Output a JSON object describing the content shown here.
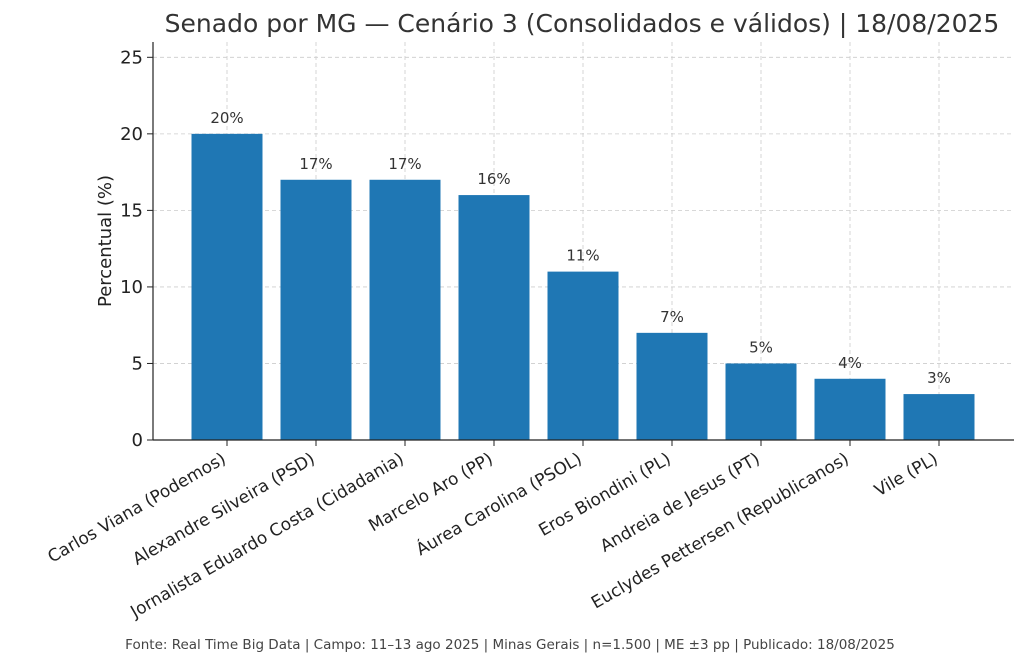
{
  "chart_data": {
    "type": "bar",
    "title": "Senado por MG — Cenário 3 (Consolidados e válidos) | 18/08/2025",
    "xlabel": "",
    "ylabel": "Percentual (%)",
    "categories": [
      "Carlos Viana (Podemos)",
      "Alexandre Silveira (PSD)",
      "Jornalista Eduardo Costa (Cidadania)",
      "Marcelo Aro (PP)",
      "Áurea Carolina (PSOL)",
      "Eros Biondini (PL)",
      "Andreia de Jesus (PT)",
      "Euclydes Pettersen (Republicanos)",
      "Vile (PL)"
    ],
    "values": [
      20,
      17,
      17,
      16,
      11,
      7,
      5,
      4,
      3
    ],
    "data_labels": [
      "20%",
      "17%",
      "17%",
      "16%",
      "11%",
      "7%",
      "5%",
      "4%",
      "3%"
    ],
    "yticks": [
      0,
      5,
      10,
      15,
      20,
      25
    ],
    "ylim": [
      0,
      26
    ],
    "grid": true,
    "bar_color": "#1f77b4"
  },
  "footer": {
    "source": "Fonte: Real Time Big Data | Campo: 11–13 ago 2025 | Minas Gerais | n=1.500 | ME ±3 pp | Publicado: 18/08/2025"
  }
}
